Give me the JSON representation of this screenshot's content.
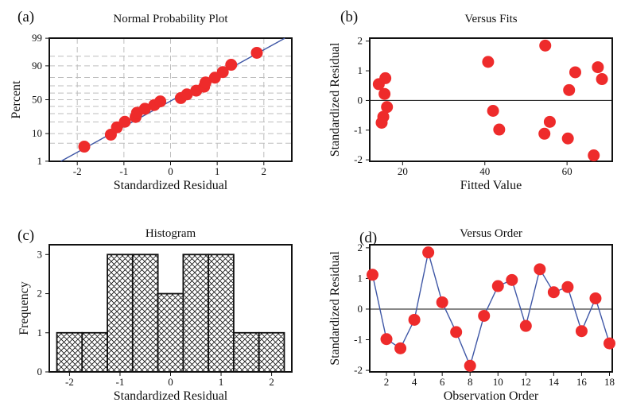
{
  "chart_data": [
    {
      "letter": "(a)",
      "type": "scatter",
      "title": "Normal Probability Plot",
      "xlabel": "Standardized Residual",
      "ylabel": "Percent",
      "xlim": [
        -2.6,
        2.6
      ],
      "ylim_z": [
        -2.33,
        2.33
      ],
      "scale_y": "normal-probability",
      "grid": true,
      "x_ticks": [
        -2,
        -1,
        0,
        1,
        2
      ],
      "y_ticks": [
        1,
        10,
        50,
        90,
        99
      ],
      "fit_line": {
        "x": [
          -2.35,
          2.45
        ],
        "y": [
          1,
          99
        ],
        "color": "#3f57a6"
      },
      "point_color": "#ee2b2b",
      "points": {
        "x": [
          -1.85,
          -1.28,
          -1.15,
          -0.98,
          -0.75,
          -0.72,
          -0.55,
          -0.35,
          -0.22,
          0.22,
          0.35,
          0.55,
          0.72,
          0.75,
          0.95,
          1.12,
          1.3,
          1.85
        ],
        "y": [
          3.8,
          9.3,
          14.8,
          20.2,
          25.7,
          31.1,
          36.6,
          42.0,
          47.5,
          52.5,
          58.0,
          63.4,
          68.9,
          74.3,
          79.8,
          85.2,
          90.7,
          96.2
        ]
      }
    },
    {
      "letter": "(b)",
      "type": "scatter",
      "title": "Versus Fits",
      "xlabel": "Fitted Value",
      "ylabel": "Standardized Residual",
      "xlim": [
        12,
        71
      ],
      "ylim": [
        -2.05,
        2.1
      ],
      "x_ticks": [
        20,
        40,
        60
      ],
      "y_ticks": [
        -2,
        -1,
        0,
        1,
        2
      ],
      "ref_line_y": 0,
      "point_color": "#ee2b2b",
      "points": {
        "x": [
          14.2,
          15.8,
          15.6,
          16.2,
          15.3,
          14.9,
          40.8,
          42.0,
          43.5,
          54.5,
          54.7,
          55.8,
          60.2,
          60.5,
          62.0,
          66.5,
          67.5,
          68.5
        ],
        "y": [
          0.55,
          0.75,
          0.22,
          -0.22,
          -0.55,
          -0.75,
          1.3,
          -0.35,
          -0.98,
          -1.12,
          1.85,
          -0.72,
          -1.28,
          0.35,
          0.95,
          -1.85,
          1.12,
          0.72
        ]
      }
    },
    {
      "letter": "(c)",
      "type": "bar",
      "title": "Histogram",
      "xlabel": "Standardized Residual",
      "ylabel": "Frequency",
      "xlim": [
        -2.4,
        2.4
      ],
      "ylim": [
        0,
        3.25
      ],
      "x_ticks": [
        -2,
        -1,
        0,
        1,
        2
      ],
      "y_ticks": [
        0,
        1,
        2,
        3
      ],
      "bar_fill": "crosshatch",
      "bin_width": 0.5,
      "bin_centers": [
        -2.0,
        -1.5,
        -1.0,
        -0.5,
        0.0,
        0.5,
        1.0,
        1.5,
        2.0
      ],
      "values": [
        1,
        1,
        3,
        3,
        2,
        3,
        3,
        1,
        1
      ]
    },
    {
      "letter": "(d)",
      "type": "line",
      "title": "Versus Order",
      "xlabel": "Observation Order",
      "ylabel": "Standardized Residual",
      "xlim": [
        0.8,
        18.2
      ],
      "ylim": [
        -2.05,
        2.1
      ],
      "x_ticks": [
        2,
        4,
        6,
        8,
        10,
        12,
        14,
        16,
        18
      ],
      "y_ticks": [
        -2,
        -1,
        0,
        1,
        2
      ],
      "ref_line_y": 0,
      "line_color": "#3f57a6",
      "point_color": "#ee2b2b",
      "x": [
        1,
        2,
        3,
        4,
        5,
        6,
        7,
        8,
        9,
        10,
        11,
        12,
        13,
        14,
        15,
        16,
        17,
        18
      ],
      "y": [
        1.12,
        -0.98,
        -1.28,
        -0.35,
        1.85,
        0.22,
        -0.75,
        -1.85,
        -0.22,
        0.75,
        0.95,
        -0.55,
        1.3,
        0.55,
        0.72,
        -0.72,
        0.35,
        -1.12
      ]
    }
  ]
}
